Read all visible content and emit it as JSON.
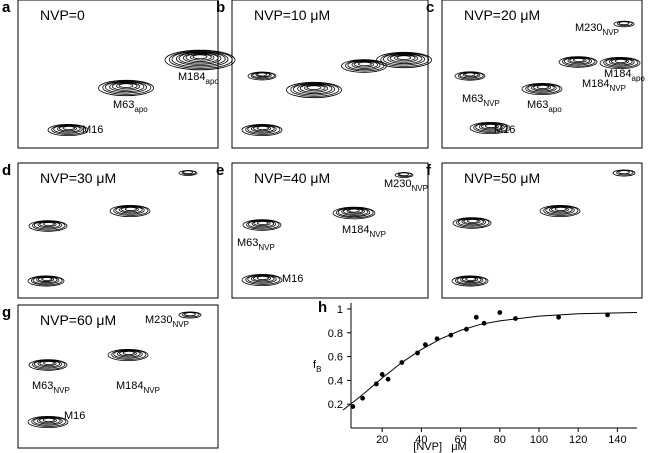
{
  "panels": [
    {
      "letter": "a",
      "title": "NVP=0",
      "labels": [
        {
          "name": "M184",
          "sub": "apo"
        },
        {
          "name": "M63",
          "sub": "apo"
        },
        {
          "name": "M16",
          "sub": null
        }
      ]
    },
    {
      "letter": "b",
      "title": "NVP=10 μM",
      "labels": []
    },
    {
      "letter": "c",
      "title": "NVP=20 μM",
      "labels": [
        {
          "name": "M230",
          "sub": "NVP"
        },
        {
          "name": "M63",
          "sub": "NVP"
        },
        {
          "name": "M63",
          "sub": "apo"
        },
        {
          "name": "M184",
          "sub": "NVP"
        },
        {
          "name": "M184",
          "sub": "apo"
        },
        {
          "name": "M16",
          "sub": null
        }
      ]
    },
    {
      "letter": "d",
      "title": "NVP=30 μM",
      "labels": []
    },
    {
      "letter": "e",
      "title": "NVP=40 μM",
      "labels": [
        {
          "name": "M230",
          "sub": "NVP"
        },
        {
          "name": "M63",
          "sub": "NVP"
        },
        {
          "name": "M184",
          "sub": "NVP"
        },
        {
          "name": "M16",
          "sub": null
        }
      ]
    },
    {
      "letter": "f",
      "title": "NVP=50 μM",
      "labels": []
    },
    {
      "letter": "g",
      "title": "NVP=60 μM",
      "labels": [
        {
          "name": "M230",
          "sub": "NVP"
        },
        {
          "name": "M63",
          "sub": "NVP"
        },
        {
          "name": "M184",
          "sub": "NVP"
        },
        {
          "name": "M16",
          "sub": null
        }
      ]
    }
  ],
  "chart_data": {
    "type": "scatter",
    "panel": "h",
    "x_label": "[NVP]   μM",
    "y_label": {
      "name": "f",
      "sub": "B"
    },
    "x": [
      5,
      10,
      17,
      20,
      23,
      30,
      38,
      42,
      48,
      55,
      63,
      68,
      72,
      80,
      88,
      110,
      135
    ],
    "y": [
      0.18,
      0.25,
      0.37,
      0.45,
      0.41,
      0.55,
      0.63,
      0.7,
      0.75,
      0.78,
      0.83,
      0.93,
      0.88,
      0.97,
      0.92,
      0.93,
      0.95
    ],
    "fit": {
      "x": [
        0,
        10,
        20,
        30,
        40,
        50,
        60,
        70,
        80,
        100,
        120,
        150
      ],
      "y": [
        0.15,
        0.28,
        0.42,
        0.55,
        0.66,
        0.75,
        0.82,
        0.87,
        0.9,
        0.94,
        0.96,
        0.97
      ]
    },
    "xlim": [
      0,
      150
    ],
    "ylim": [
      0,
      1.05
    ],
    "xticks": [
      20,
      40,
      60,
      80,
      100,
      120,
      140
    ],
    "yticks": [
      0.2,
      0.4,
      0.6,
      0.8,
      1
    ]
  }
}
